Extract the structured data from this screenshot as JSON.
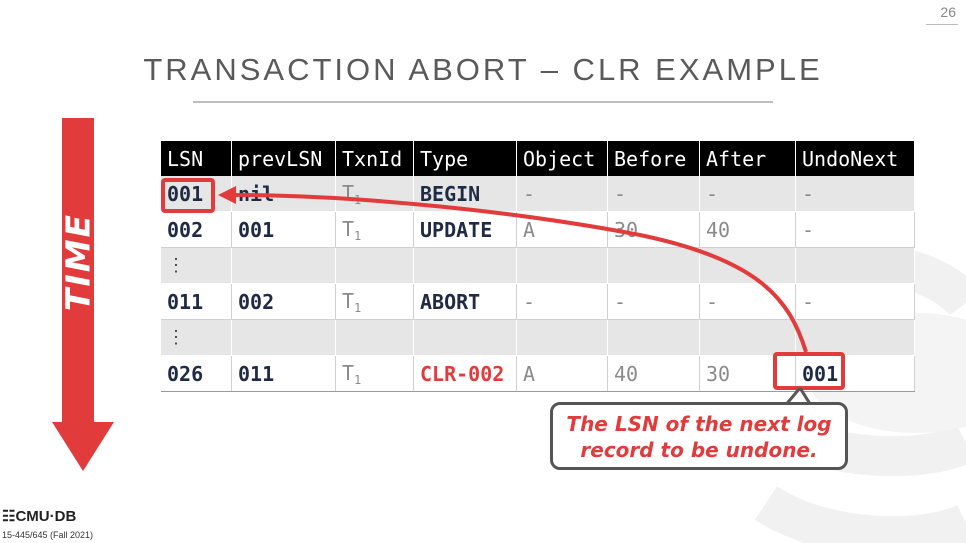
{
  "page_number": "26",
  "title": "TRANSACTION ABORT – CLR EXAMPLE",
  "time_label": "TIME",
  "table": {
    "headers": [
      "LSN",
      "prevLSN",
      "TxnId",
      "Type",
      "Object",
      "Before",
      "After",
      "UndoNext"
    ],
    "rows": [
      {
        "lsn": "001",
        "prev": "nil",
        "txn": "T",
        "txn_sub": "1",
        "type": "BEGIN",
        "object": "-",
        "before": "-",
        "after": "-",
        "undo": "-"
      },
      {
        "lsn": "002",
        "prev": "001",
        "txn": "T",
        "txn_sub": "1",
        "type": "UPDATE",
        "object": "A",
        "before": "30",
        "after": "40",
        "undo": "-"
      },
      {
        "lsn": "⋮",
        "prev": "",
        "txn": "",
        "txn_sub": "",
        "type": "",
        "object": "",
        "before": "",
        "after": "",
        "undo": ""
      },
      {
        "lsn": "011",
        "prev": "002",
        "txn": "T",
        "txn_sub": "1",
        "type": "ABORT",
        "object": "-",
        "before": "-",
        "after": "-",
        "undo": "-"
      },
      {
        "lsn": "⋮",
        "prev": "",
        "txn": "",
        "txn_sub": "",
        "type": "",
        "object": "",
        "before": "",
        "after": "",
        "undo": ""
      },
      {
        "lsn": "026",
        "prev": "011",
        "txn": "T",
        "txn_sub": "1",
        "type": "CLR-002",
        "object": "A",
        "before": "40",
        "after": "30",
        "undo": "001"
      }
    ]
  },
  "callout": {
    "line1": "The LSN of the next log",
    "line2": "record to be undone."
  },
  "footer": {
    "logo": "CMU·DB",
    "course": "15-445/645 (Fall 2021)"
  },
  "colors": {
    "accent_red": "#e23b3b",
    "header_bg": "#000000",
    "row_shade": "#e6e6e6"
  }
}
